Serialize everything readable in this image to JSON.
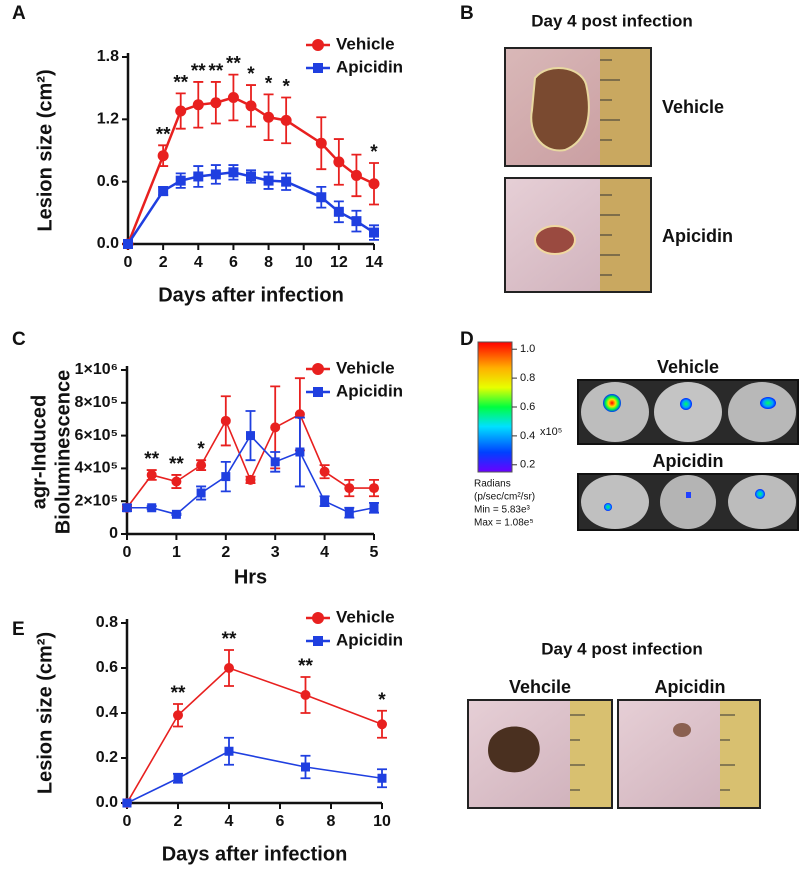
{
  "chart_data": [
    {
      "type": "line",
      "xlabel": "Days after infection",
      "ylabel": "Lesion size (cm²)",
      "x": [
        0,
        2,
        3,
        4,
        5,
        6,
        7,
        8,
        9,
        11,
        12,
        13,
        14
      ],
      "series": [
        {
          "name": "Vehicle",
          "color": "#e8201f",
          "marker": "circle",
          "values": [
            0,
            0.85,
            1.28,
            1.34,
            1.36,
            1.41,
            1.33,
            1.22,
            1.19,
            0.97,
            0.79,
            0.66,
            0.58
          ],
          "errors": [
            0,
            0.1,
            0.17,
            0.22,
            0.2,
            0.22,
            0.2,
            0.22,
            0.22,
            0.25,
            0.22,
            0.2,
            0.2
          ]
        },
        {
          "name": "Apicidin",
          "color": "#1f3fe0",
          "marker": "square",
          "values": [
            0,
            0.51,
            0.61,
            0.65,
            0.67,
            0.69,
            0.65,
            0.61,
            0.6,
            0.45,
            0.31,
            0.22,
            0.11
          ],
          "errors": [
            0,
            0.04,
            0.07,
            0.1,
            0.09,
            0.07,
            0.06,
            0.08,
            0.08,
            0.1,
            0.1,
            0.1,
            0.07
          ]
        }
      ],
      "xlim": [
        0,
        14
      ],
      "xticks": [
        0,
        2,
        4,
        6,
        8,
        10,
        12,
        14
      ],
      "ylim": [
        0,
        1.8
      ],
      "yticks": [
        {
          "value": 0,
          "label": "0.0"
        },
        0.6,
        1.2,
        1.8
      ],
      "annotations": [
        {
          "x": 2,
          "text": "**"
        },
        {
          "x": 3,
          "text": "**"
        },
        {
          "x": 4,
          "text": "**"
        },
        {
          "x": 5,
          "text": "**"
        },
        {
          "x": 6,
          "text": "**"
        },
        {
          "x": 7,
          "text": "*"
        },
        {
          "x": 8,
          "text": "*"
        },
        {
          "x": 9,
          "text": "*"
        },
        {
          "x": 14,
          "text": "*"
        }
      ],
      "legend": "upper right"
    },
    {
      "type": "line",
      "xlabel": "Hrs",
      "ylabel": [
        "agr-Induced",
        "Bioluminescence"
      ],
      "x": [
        0,
        0.5,
        1,
        1.5,
        2,
        2.5,
        3,
        3.5,
        4,
        4.5,
        5
      ],
      "series": [
        {
          "name": "Vehicle",
          "color": "#e8201f",
          "marker": "circle",
          "values": [
            160000,
            360000,
            320000,
            420000,
            690000,
            330000,
            650000,
            730000,
            380000,
            280000,
            280000
          ],
          "errors": [
            10000,
            30000,
            40000,
            30000,
            150000,
            20000,
            250000,
            220000,
            40000,
            50000,
            50000
          ]
        },
        {
          "name": "Apicidin",
          "color": "#1f3fe0",
          "marker": "square",
          "values": [
            160000,
            160000,
            120000,
            250000,
            350000,
            600000,
            440000,
            500000,
            200000,
            130000,
            160000
          ],
          "errors": [
            20000,
            10000,
            5000,
            40000,
            90000,
            150000,
            60000,
            210000,
            30000,
            30000,
            30000
          ]
        }
      ],
      "xlim": [
        0,
        5
      ],
      "xticks": [
        0,
        1,
        2,
        3,
        4,
        5
      ],
      "ylim": [
        0,
        1000000
      ],
      "yticks": [
        0,
        {
          "value": 200000,
          "label": "2×10⁵"
        },
        {
          "value": 400000,
          "label": "4×10⁵"
        },
        {
          "value": 600000,
          "label": "6×10⁵"
        },
        {
          "value": 800000,
          "label": "8×10⁵"
        },
        {
          "value": 1000000,
          "label": "1×10⁶"
        }
      ],
      "annotations": [
        {
          "x": 0.5,
          "text": "**"
        },
        {
          "x": 1,
          "text": "**"
        },
        {
          "x": 1.5,
          "text": "*"
        }
      ],
      "legend": "upper right"
    },
    {
      "type": "line",
      "xlabel": "Days after infection",
      "ylabel": "Lesion size (cm²)",
      "x": [
        0,
        2,
        4,
        7,
        10
      ],
      "series": [
        {
          "name": "Vehicle",
          "color": "#e8201f",
          "marker": "circle",
          "values": [
            0,
            0.39,
            0.6,
            0.48,
            0.35
          ],
          "errors": [
            0,
            0.05,
            0.08,
            0.08,
            0.06
          ]
        },
        {
          "name": "Apicidin",
          "color": "#1f3fe0",
          "marker": "square",
          "values": [
            0,
            0.11,
            0.23,
            0.16,
            0.11
          ],
          "errors": [
            0,
            0.02,
            0.06,
            0.05,
            0.04
          ]
        }
      ],
      "xlim": [
        0,
        10
      ],
      "xticks": [
        0,
        2,
        4,
        6,
        8,
        10
      ],
      "ylim": [
        0,
        0.8
      ],
      "yticks": [
        {
          "value": 0,
          "label": "0.0"
        },
        0.2,
        0.4,
        0.6,
        0.8
      ],
      "annotations": [
        {
          "x": 2,
          "text": "**"
        },
        {
          "x": 4,
          "text": "**"
        },
        {
          "x": 7,
          "text": "**"
        },
        {
          "x": 10,
          "text": "*"
        }
      ],
      "legend": "upper right"
    }
  ],
  "panel_letters": [
    "A",
    "B",
    "C",
    "D",
    "E"
  ],
  "panel_b": {
    "title": "Day 4 post infection",
    "labels": [
      "Vehicle",
      "Apicidin"
    ]
  },
  "panel_d": {
    "labels": [
      "Vehicle",
      "Apicidin"
    ],
    "colorbar": {
      "lim": [
        0.15,
        1.05
      ],
      "ticks": [
        {
          "value": 1,
          "label": "1.0"
        },
        0.8,
        0.6,
        0.4,
        0.2
      ],
      "exponent": "x10⁵",
      "unit": "Radians",
      "unit_detail": "(p/sec/cm²/sr)",
      "min": "Min = 5.83e³",
      "max": "Max = 1.08e⁵"
    }
  },
  "panel_e_photos": {
    "title": "Day 4 post infection",
    "labels": [
      "Vehcile",
      "Apicidin"
    ]
  }
}
